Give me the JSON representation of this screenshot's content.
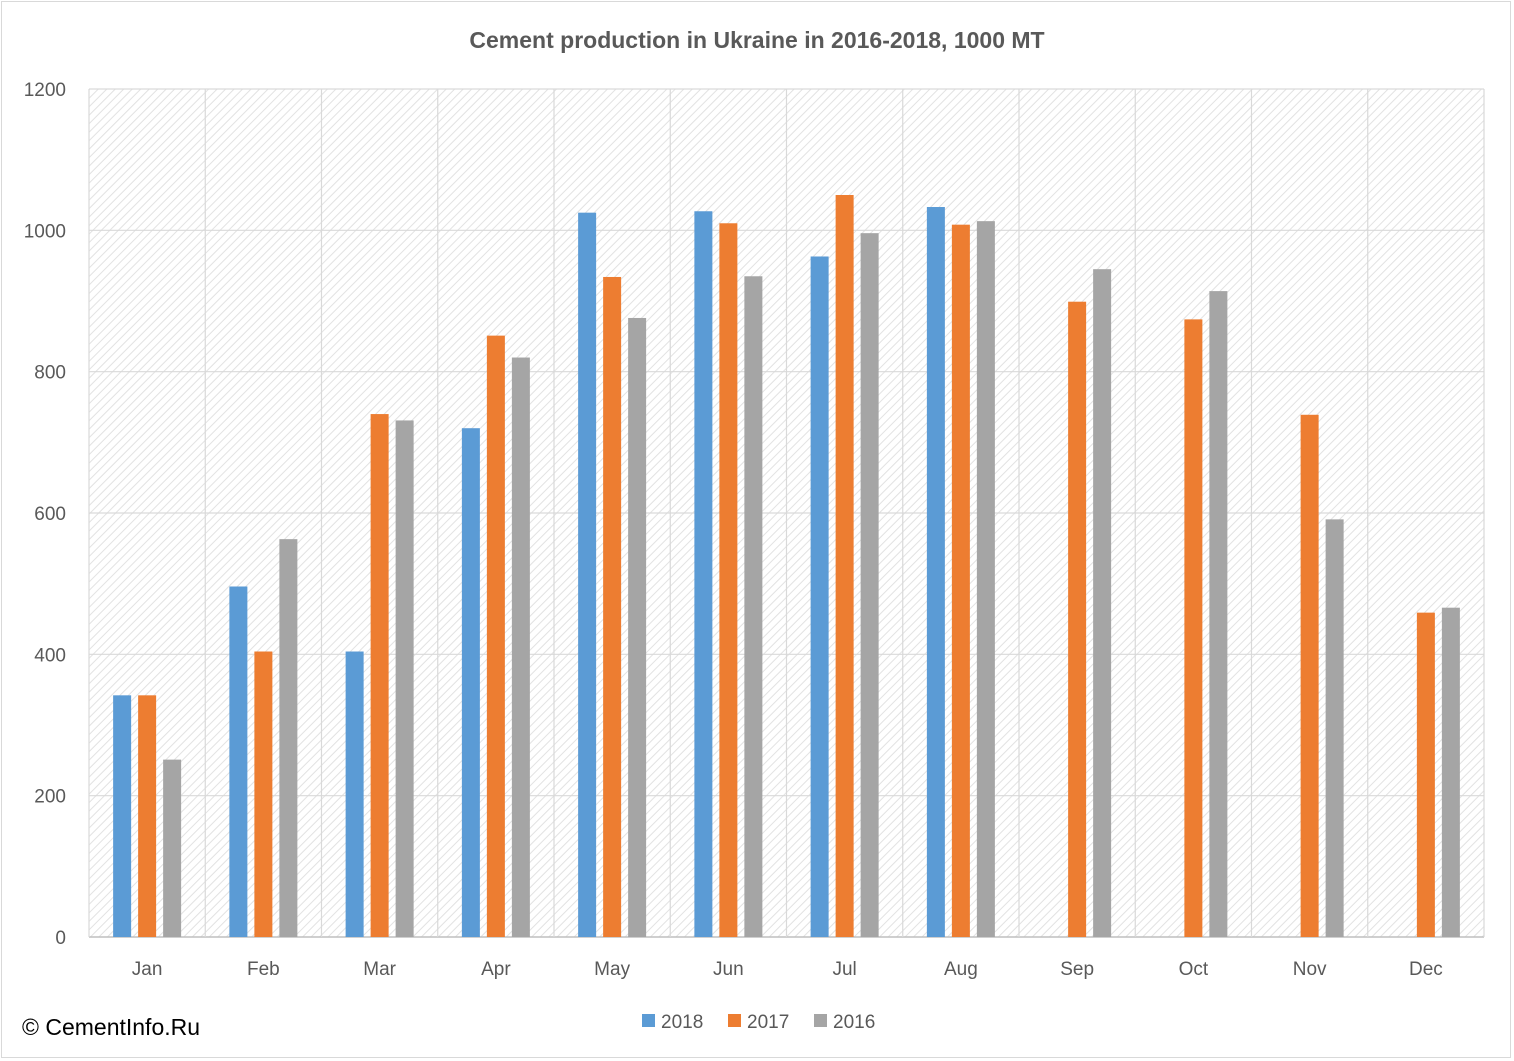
{
  "chart_data": {
    "type": "bar",
    "title": "Cement production in Ukraine in 2016-2018, 1000 MT",
    "xlabel": "",
    "ylabel": "",
    "categories": [
      "Jan",
      "Feb",
      "Mar",
      "Apr",
      "May",
      "Jun",
      "Jul",
      "Aug",
      "Sep",
      "Oct",
      "Nov",
      "Dec"
    ],
    "series": [
      {
        "name": "2018",
        "color": "#5b9bd5",
        "values": [
          342,
          496,
          404,
          720,
          1025,
          1027,
          963,
          1033,
          null,
          null,
          null,
          null
        ]
      },
      {
        "name": "2017",
        "color": "#ed7d31",
        "values": [
          342,
          404,
          740,
          851,
          934,
          1010,
          1050,
          1008,
          899,
          874,
          739,
          459
        ]
      },
      {
        "name": "2016",
        "color": "#a5a5a5",
        "values": [
          251,
          563,
          731,
          820,
          876,
          935,
          996,
          1013,
          945,
          914,
          591,
          466
        ]
      }
    ],
    "ylim": [
      0,
      1200
    ],
    "yticks": [
      0,
      200,
      400,
      600,
      800,
      1000,
      1200
    ],
    "grid": true,
    "legend": "bottom-center"
  },
  "watermark": "© CementInfo.Ru"
}
